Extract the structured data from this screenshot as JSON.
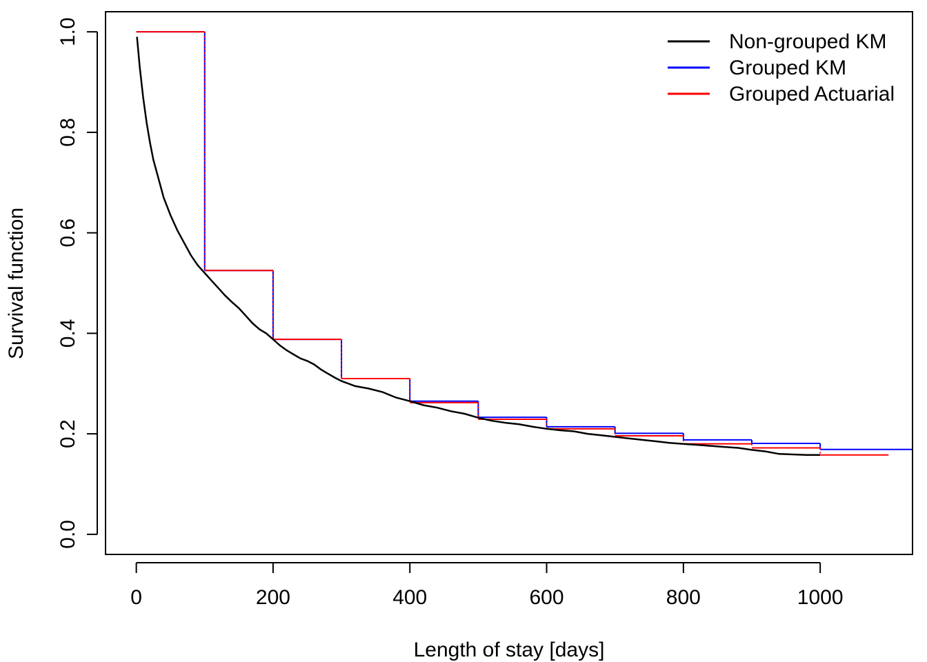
{
  "chart_data": {
    "type": "line",
    "title": "",
    "xlabel": "Length of stay [days]",
    "ylabel": "Survival function",
    "xlim": [
      -45,
      1135
    ],
    "ylim": [
      -0.04,
      1.04
    ],
    "x_ticks": [
      0,
      200,
      400,
      600,
      800,
      1000
    ],
    "x_tick_labels": [
      "0",
      "200",
      "400",
      "600",
      "800",
      "1000"
    ],
    "y_ticks": [
      0.0,
      0.2,
      0.4,
      0.6,
      0.8,
      1.0
    ],
    "y_tick_labels": [
      "0.0",
      "0.2",
      "0.4",
      "0.6",
      "0.8",
      "1.0"
    ],
    "grid": false,
    "legend_position": "top-right",
    "series": [
      {
        "name": "Non-grouped KM",
        "color": "#000000",
        "style": "curve",
        "x": [
          1,
          5,
          10,
          15,
          20,
          25,
          30,
          40,
          50,
          60,
          70,
          80,
          90,
          100,
          110,
          120,
          130,
          140,
          150,
          160,
          170,
          180,
          190,
          200,
          210,
          220,
          230,
          240,
          250,
          260,
          270,
          280,
          290,
          300,
          320,
          340,
          360,
          380,
          400,
          420,
          440,
          460,
          480,
          500,
          520,
          540,
          560,
          580,
          600,
          620,
          640,
          660,
          680,
          700,
          720,
          740,
          760,
          780,
          800,
          820,
          840,
          860,
          880,
          900,
          920,
          940,
          960,
          980,
          1000
        ],
        "y": [
          0.99,
          0.93,
          0.87,
          0.82,
          0.78,
          0.745,
          0.72,
          0.67,
          0.635,
          0.605,
          0.58,
          0.555,
          0.535,
          0.52,
          0.505,
          0.49,
          0.475,
          0.462,
          0.45,
          0.435,
          0.42,
          0.408,
          0.4,
          0.388,
          0.376,
          0.366,
          0.358,
          0.35,
          0.345,
          0.338,
          0.328,
          0.32,
          0.312,
          0.305,
          0.295,
          0.29,
          0.283,
          0.272,
          0.265,
          0.257,
          0.252,
          0.245,
          0.24,
          0.232,
          0.226,
          0.222,
          0.219,
          0.214,
          0.21,
          0.207,
          0.205,
          0.2,
          0.197,
          0.194,
          0.191,
          0.188,
          0.185,
          0.182,
          0.18,
          0.178,
          0.176,
          0.174,
          0.172,
          0.168,
          0.165,
          0.16,
          0.159,
          0.158,
          0.158
        ]
      },
      {
        "name": "Grouped KM",
        "color": "#0000ff",
        "style": "step",
        "x": [
          0,
          100,
          200,
          300,
          400,
          500,
          600,
          700,
          800,
          900,
          1000,
          1135
        ],
        "y": [
          1.0,
          0.525,
          0.388,
          0.31,
          0.265,
          0.233,
          0.214,
          0.201,
          0.188,
          0.181,
          0.169,
          0.169
        ]
      },
      {
        "name": "Grouped Actuarial",
        "color": "#ff0000",
        "style": "step-dotted",
        "x": [
          0,
          100,
          200,
          300,
          400,
          500,
          600,
          700,
          800,
          900,
          1000,
          1100
        ],
        "y": [
          1.0,
          0.525,
          0.388,
          0.31,
          0.262,
          0.229,
          0.21,
          0.196,
          0.18,
          0.172,
          0.158,
          0.158
        ]
      }
    ]
  }
}
